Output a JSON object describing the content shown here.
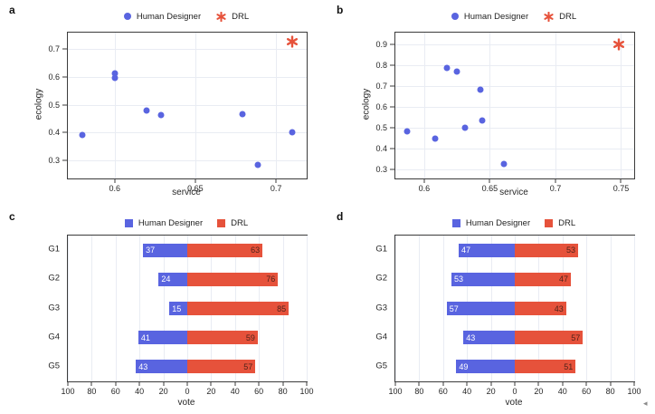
{
  "figure": {
    "background": "#ffffff",
    "colors": {
      "human": "#5964e0",
      "drl": "#e6523b",
      "grid": "#e9ecf3",
      "axis_border": "#3b3b3b",
      "text": "#1f1f1f",
      "bar_label_on_blue": "#ffffff",
      "bar_label_on_red": "#50231a"
    },
    "corner_glyph": "◂"
  },
  "legend": {
    "human_label": "Human Designer",
    "drl_label": "DRL"
  },
  "chart_data": [
    {
      "id": "a",
      "panel_label": "a",
      "type": "scatter",
      "xlabel": "service",
      "ylabel": "ecology",
      "xlim": [
        0.571,
        0.719
      ],
      "ylim": [
        0.235,
        0.76
      ],
      "grid": true,
      "legend_position": "top-center",
      "xticks": [
        {
          "v": 0.6,
          "t": "0.6"
        },
        {
          "v": 0.65,
          "t": "0.65"
        },
        {
          "v": 0.7,
          "t": "0.7"
        }
      ],
      "yticks": [
        {
          "v": 0.3,
          "t": "0.3"
        },
        {
          "v": 0.4,
          "t": "0.4"
        },
        {
          "v": 0.5,
          "t": "0.5"
        },
        {
          "v": 0.6,
          "t": "0.6"
        },
        {
          "v": 0.7,
          "t": "0.7"
        }
      ],
      "series": [
        {
          "name": "Human Designer",
          "marker": "circle",
          "points": [
            [
              0.58,
              0.392
            ],
            [
              0.6,
              0.613
            ],
            [
              0.6,
              0.598
            ],
            [
              0.62,
              0.48
            ],
            [
              0.629,
              0.464
            ],
            [
              0.679,
              0.465
            ],
            [
              0.689,
              0.284
            ],
            [
              0.71,
              0.4
            ]
          ]
        },
        {
          "name": "DRL",
          "marker": "star",
          "points": [
            [
              0.71,
              0.728
            ]
          ]
        }
      ]
    },
    {
      "id": "b",
      "panel_label": "b",
      "type": "scatter",
      "xlabel": "service",
      "ylabel": "ecology",
      "xlim": [
        0.578,
        0.76
      ],
      "ylim": [
        0.255,
        0.955
      ],
      "grid": true,
      "legend_position": "top-center",
      "xticks": [
        {
          "v": 0.6,
          "t": "0.6"
        },
        {
          "v": 0.65,
          "t": "0.65"
        },
        {
          "v": 0.7,
          "t": "0.7"
        },
        {
          "v": 0.75,
          "t": "0.75"
        }
      ],
      "yticks": [
        {
          "v": 0.3,
          "t": "0.3"
        },
        {
          "v": 0.4,
          "t": "0.4"
        },
        {
          "v": 0.5,
          "t": "0.5"
        },
        {
          "v": 0.6,
          "t": "0.6"
        },
        {
          "v": 0.7,
          "t": "0.7"
        },
        {
          "v": 0.8,
          "t": "0.8"
        },
        {
          "v": 0.9,
          "t": "0.9"
        }
      ],
      "series": [
        {
          "name": "Human Designer",
          "marker": "circle",
          "points": [
            [
              0.587,
              0.483
            ],
            [
              0.608,
              0.445
            ],
            [
              0.617,
              0.785
            ],
            [
              0.625,
              0.768
            ],
            [
              0.631,
              0.497
            ],
            [
              0.643,
              0.682
            ],
            [
              0.644,
              0.533
            ],
            [
              0.661,
              0.323
            ]
          ]
        },
        {
          "name": "DRL",
          "marker": "star",
          "points": [
            [
              0.748,
              0.897
            ]
          ]
        }
      ]
    },
    {
      "id": "c",
      "panel_label": "c",
      "type": "diverging_bar",
      "xlabel": "vote",
      "categories": [
        "G1",
        "G2",
        "G3",
        "G4",
        "G5"
      ],
      "xlim": [
        -100,
        100
      ],
      "grid": true,
      "legend_position": "top-center",
      "xticks": [
        {
          "v": -100,
          "t": "100"
        },
        {
          "v": -80,
          "t": "80"
        },
        {
          "v": -60,
          "t": "60"
        },
        {
          "v": -40,
          "t": "40"
        },
        {
          "v": -20,
          "t": "20"
        },
        {
          "v": 0,
          "t": "0"
        },
        {
          "v": 20,
          "t": "20"
        },
        {
          "v": 40,
          "t": "40"
        },
        {
          "v": 60,
          "t": "60"
        },
        {
          "v": 80,
          "t": "80"
        },
        {
          "v": 100,
          "t": "100"
        }
      ],
      "series": [
        {
          "name": "Human Designer",
          "side": "left",
          "values": [
            37,
            24,
            15,
            41,
            43
          ]
        },
        {
          "name": "DRL",
          "side": "right",
          "values": [
            63,
            76,
            85,
            59,
            57
          ]
        }
      ]
    },
    {
      "id": "d",
      "panel_label": "d",
      "type": "diverging_bar",
      "xlabel": "vote",
      "categories": [
        "G1",
        "G2",
        "G3",
        "G4",
        "G5"
      ],
      "xlim": [
        -100,
        100
      ],
      "grid": true,
      "legend_position": "top-center",
      "xticks": [
        {
          "v": -100,
          "t": "100"
        },
        {
          "v": -80,
          "t": "80"
        },
        {
          "v": -60,
          "t": "60"
        },
        {
          "v": -40,
          "t": "40"
        },
        {
          "v": -20,
          "t": "20"
        },
        {
          "v": 0,
          "t": "0"
        },
        {
          "v": 20,
          "t": "20"
        },
        {
          "v": 40,
          "t": "40"
        },
        {
          "v": 60,
          "t": "60"
        },
        {
          "v": 80,
          "t": "80"
        },
        {
          "v": 100,
          "t": "100"
        }
      ],
      "series": [
        {
          "name": "Human Designer",
          "side": "left",
          "values": [
            47,
            53,
            57,
            43,
            49
          ]
        },
        {
          "name": "DRL",
          "side": "right",
          "values": [
            53,
            47,
            43,
            57,
            51
          ]
        }
      ]
    }
  ]
}
